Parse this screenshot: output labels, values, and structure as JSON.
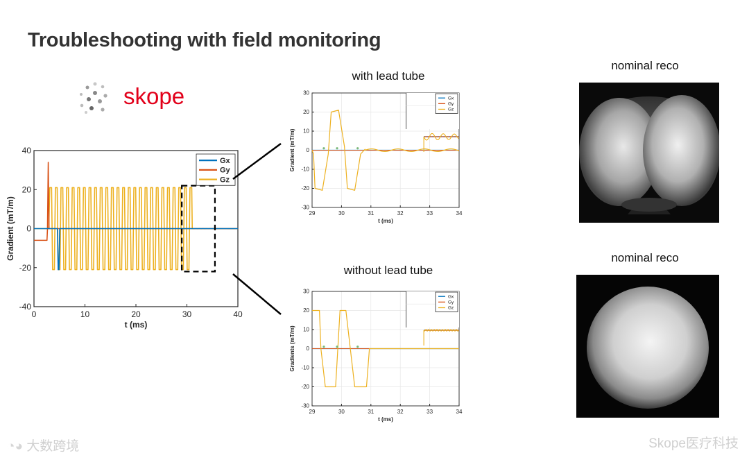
{
  "slide": {
    "title": "Troubleshooting with field monitoring",
    "logo_text": "skope",
    "watermark_left": "大数跨境",
    "watermark_right": "Skope医疗科技"
  },
  "captions": {
    "with_lead_tube": "with lead tube",
    "without_lead_tube": "without lead tube",
    "reco_top": "nominal reco",
    "reco_bottom": "nominal reco"
  },
  "colors": {
    "Gx": "#0072BD",
    "Gy": "#D95319",
    "Gz": "#EDB120",
    "brand_red": "#e2001a"
  },
  "chart_data": [
    {
      "type": "line",
      "id": "main",
      "xlabel": "t (ms)",
      "ylabel": "Gradient (mT/m)",
      "xlim": [
        0,
        40
      ],
      "ylim": [
        -40,
        40
      ],
      "xticks": [
        0,
        10,
        20,
        30,
        40
      ],
      "yticks": [
        -40,
        -20,
        0,
        20,
        40
      ],
      "legend": "top-right",
      "series": [
        {
          "name": "Gx",
          "description": "blue, mostly 0 with a dip to -21 near t≈4.8 ms"
        },
        {
          "name": "Gy",
          "description": "orange, -6 from 0 to 2.6 ms, spike to 34 at 2.8 ms, then 0"
        },
        {
          "name": "Gz",
          "description": "yellow, trapezoidal oscillation between +21 and -21 from ~3 to ~31 ms, then small ringing near 0"
        }
      ],
      "annotation": "dashed box from t≈29 to t≈35.5 ms, y -22 to 22"
    },
    {
      "type": "line",
      "id": "with_lead",
      "xlabel": "t (ms)",
      "ylabel": "Gradient (mT/m)",
      "xlim": [
        29,
        34
      ],
      "ylim": [
        -30,
        30
      ],
      "xticks": [
        29,
        30,
        31,
        32,
        33,
        34
      ],
      "yticks": [
        -30,
        -20,
        -10,
        0,
        10,
        20,
        30
      ],
      "legend": "top-right",
      "series": [
        {
          "name": "Gx",
          "x": [
            29,
            34
          ],
          "y": [
            0,
            0
          ]
        },
        {
          "name": "Gy",
          "x": [
            29,
            34
          ],
          "y": [
            0,
            0
          ]
        },
        {
          "name": "Gz",
          "x": [
            29.0,
            29.05,
            29.1,
            29.35,
            29.55,
            29.65,
            29.9,
            30.1,
            30.2,
            30.45,
            30.65,
            30.8
          ],
          "y": [
            0,
            -2,
            -20,
            -21,
            -2,
            20,
            21,
            2,
            -20,
            -21,
            -2,
            0.5
          ]
        }
      ],
      "inset": {
        "x_range": [
          32.8,
          34
        ],
        "description": "zoomed view with Gz ringing ±2 around offset"
      }
    },
    {
      "type": "line",
      "id": "without_lead",
      "xlabel": "t (ms)",
      "ylabel": "Gradients (mT/m)",
      "xlim": [
        29,
        34
      ],
      "ylim": [
        -30,
        30
      ],
      "xticks": [
        29,
        30,
        31,
        32,
        33,
        34
      ],
      "yticks": [
        -30,
        -20,
        -10,
        0,
        10,
        20,
        30
      ],
      "legend": "top-right",
      "series": [
        {
          "name": "Gx",
          "x": [
            29,
            34
          ],
          "y": [
            0,
            0
          ]
        },
        {
          "name": "Gy",
          "x": [
            29,
            34
          ],
          "y": [
            0,
            0
          ]
        },
        {
          "name": "Gz",
          "x": [
            29.0,
            29.25,
            29.3,
            29.45,
            29.55,
            29.8,
            29.95,
            30.15,
            30.3,
            30.45,
            30.55,
            30.85,
            30.95
          ],
          "y": [
            20,
            20,
            0,
            -20,
            -20,
            -20,
            20,
            20,
            0,
            -20,
            -20,
            -20,
            0
          ]
        }
      ],
      "inset": {
        "x_range": [
          32.8,
          34
        ],
        "description": "zoomed view, no ringing"
      }
    }
  ]
}
